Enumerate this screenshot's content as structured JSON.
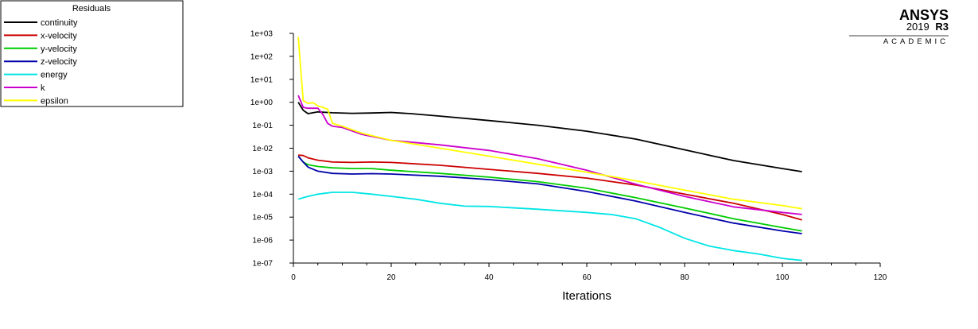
{
  "brand": {
    "name": "ANSYS",
    "version": "2019",
    "release": "R3",
    "edition": "ACADEMIC"
  },
  "chart_data": {
    "type": "line",
    "title": "",
    "legend_title": "Residuals",
    "legend_position": "top-left",
    "xlabel": "Iterations",
    "ylabel": "",
    "xlim": [
      0,
      120
    ],
    "ylim": [
      1e-07,
      1000
    ],
    "yscale": "log",
    "x_ticks": [
      0,
      20,
      40,
      60,
      80,
      100,
      120
    ],
    "y_ticks": [
      "1e-07",
      "1e-06",
      "1e-05",
      "1e-04",
      "1e-03",
      "1e-02",
      "1e-01",
      "1e+00",
      "1e+01",
      "1e+02",
      "1e+03"
    ],
    "grid": false,
    "series": [
      {
        "name": "continuity",
        "color": "#000000",
        "x": [
          1,
          2,
          3,
          5,
          8,
          12,
          16,
          20,
          24,
          30,
          40,
          50,
          60,
          70,
          80,
          90,
          100,
          104
        ],
        "y": [
          1,
          0.45,
          0.32,
          0.38,
          0.35,
          0.33,
          0.34,
          0.36,
          0.32,
          0.25,
          0.16,
          0.1,
          0.055,
          0.025,
          0.0085,
          0.0029,
          0.0013,
          0.00095
        ]
      },
      {
        "name": "x-velocity",
        "color": "#cc0000",
        "x": [
          1,
          2,
          3,
          5,
          8,
          12,
          16,
          20,
          30,
          40,
          50,
          60,
          70,
          80,
          90,
          100,
          104
        ],
        "y": [
          0.005,
          0.0048,
          0.0038,
          0.003,
          0.0025,
          0.0024,
          0.0025,
          0.0024,
          0.0018,
          0.0012,
          0.0008,
          0.0005,
          0.00025,
          0.0001,
          4e-05,
          1.3e-05,
          7.5e-06
        ]
      },
      {
        "name": "y-velocity",
        "color": "#00cc00",
        "x": [
          1,
          2,
          3,
          5,
          8,
          12,
          16,
          20,
          30,
          40,
          50,
          60,
          70,
          80,
          90,
          100,
          104
        ],
        "y": [
          0.0045,
          0.0025,
          0.0019,
          0.0016,
          0.0014,
          0.0013,
          0.0013,
          0.0011,
          0.0008,
          0.00055,
          0.00035,
          0.00018,
          7e-05,
          2.5e-05,
          8.5e-06,
          3.5e-06,
          2.5e-06
        ]
      },
      {
        "name": "z-velocity",
        "color": "#0000aa",
        "x": [
          1,
          2,
          3,
          5,
          8,
          12,
          16,
          20,
          30,
          40,
          50,
          60,
          70,
          80,
          90,
          100,
          104
        ],
        "y": [
          0.0045,
          0.0025,
          0.0015,
          0.001,
          0.0008,
          0.00075,
          0.00078,
          0.00075,
          0.0006,
          0.00043,
          0.00028,
          0.00013,
          5e-05,
          1.6e-05,
          5.5e-06,
          2.5e-06,
          1.9e-06
        ]
      },
      {
        "name": "energy",
        "color": "#00e5e5",
        "x": [
          1,
          2,
          3,
          5,
          8,
          12,
          16,
          20,
          25,
          30,
          35,
          40,
          50,
          60,
          65,
          70,
          75,
          80,
          85,
          90,
          95,
          100,
          104
        ],
        "y": [
          6e-05,
          7e-05,
          8e-05,
          0.0001,
          0.00012,
          0.00012,
          0.0001,
          8e-05,
          6e-05,
          4e-05,
          3e-05,
          2.9e-05,
          2.2e-05,
          1.6e-05,
          1.3e-05,
          8.5e-06,
          3.5e-06,
          1.2e-06,
          5.5e-07,
          3.5e-07,
          2.5e-07,
          1.6e-07,
          1.3e-07
        ]
      },
      {
        "name": "k",
        "color": "#cc00cc",
        "x": [
          1,
          2,
          3,
          5,
          6,
          7,
          8,
          10,
          14,
          20,
          30,
          40,
          50,
          60,
          70,
          80,
          90,
          100,
          104
        ],
        "y": [
          2,
          0.6,
          0.55,
          0.55,
          0.3,
          0.12,
          0.09,
          0.08,
          0.04,
          0.022,
          0.014,
          0.008,
          0.0035,
          0.0011,
          0.00027,
          8e-05,
          2.8e-05,
          1.6e-05,
          1.3e-05
        ]
      },
      {
        "name": "epsilon",
        "color": "#ffff00",
        "x": [
          1,
          2,
          3,
          4,
          5,
          6,
          7,
          8,
          10,
          14,
          20,
          30,
          40,
          50,
          60,
          70,
          80,
          90,
          100,
          104
        ],
        "y": [
          700,
          1.2,
          0.9,
          0.95,
          0.7,
          0.6,
          0.5,
          0.12,
          0.09,
          0.045,
          0.022,
          0.01,
          0.0045,
          0.002,
          0.0009,
          0.00038,
          0.00015,
          6e-05,
          3.2e-05,
          2.3e-05
        ]
      }
    ]
  }
}
